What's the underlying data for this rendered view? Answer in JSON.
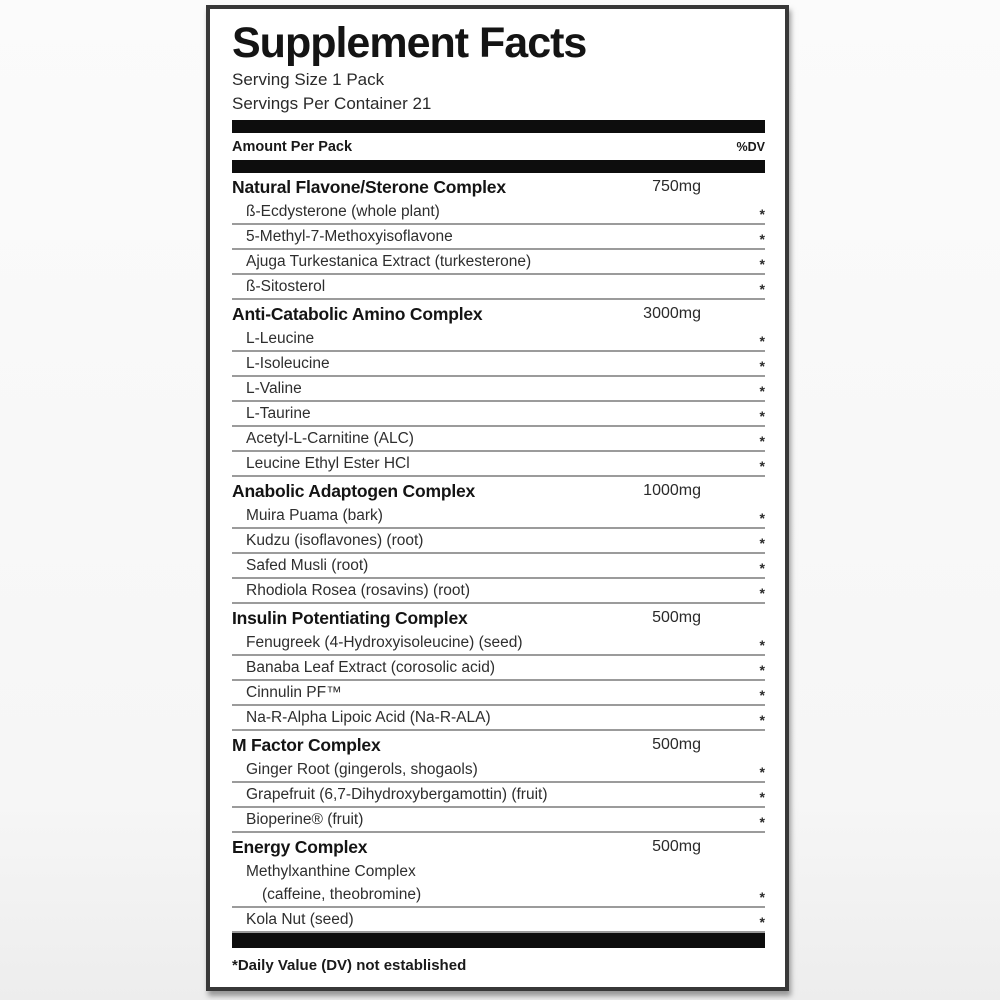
{
  "label": {
    "title": "Supplement Facts",
    "serving_size": "Serving Size 1 Pack",
    "servings_per_container": "Servings Per Container 21",
    "columns": {
      "left": "Amount Per Pack",
      "right": "%DV"
    },
    "sections": [
      {
        "name": "Natural Flavone/Sterone Complex",
        "amount": "750mg",
        "items": [
          {
            "lines": [
              "ß-Ecdysterone (whole plant)"
            ],
            "dv": "*"
          },
          {
            "lines": [
              "5-Methyl-7-Methoxyisoflavone"
            ],
            "dv": "*"
          },
          {
            "lines": [
              "Ajuga Turkestanica Extract (turkesterone)"
            ],
            "dv": "*"
          },
          {
            "lines": [
              "ß-Sitosterol"
            ],
            "dv": "*"
          }
        ]
      },
      {
        "name": "Anti-Catabolic Amino Complex",
        "amount": "3000mg",
        "items": [
          {
            "lines": [
              "L-Leucine"
            ],
            "dv": "*"
          },
          {
            "lines": [
              "L-Isoleucine"
            ],
            "dv": "*"
          },
          {
            "lines": [
              "L-Valine"
            ],
            "dv": "*"
          },
          {
            "lines": [
              "L-Taurine"
            ],
            "dv": "*"
          },
          {
            "lines": [
              "Acetyl-L-Carnitine (ALC)"
            ],
            "dv": "*"
          },
          {
            "lines": [
              "Leucine Ethyl Ester HCl"
            ],
            "dv": "*"
          }
        ]
      },
      {
        "name": "Anabolic Adaptogen Complex",
        "amount": "1000mg",
        "items": [
          {
            "lines": [
              "Muira Puama (bark)"
            ],
            "dv": "*"
          },
          {
            "lines": [
              "Kudzu (isoflavones) (root)"
            ],
            "dv": "*"
          },
          {
            "lines": [
              "Safed Musli (root)"
            ],
            "dv": "*"
          },
          {
            "lines": [
              "Rhodiola Rosea (rosavins) (root)"
            ],
            "dv": "*"
          }
        ]
      },
      {
        "name": "Insulin Potentiating Complex",
        "amount": "500mg",
        "items": [
          {
            "lines": [
              "Fenugreek (4-Hydroxyisoleucine) (seed)"
            ],
            "dv": "*"
          },
          {
            "lines": [
              "Banaba Leaf Extract (corosolic acid)"
            ],
            "dv": "*"
          },
          {
            "lines": [
              "Cinnulin PF™"
            ],
            "dv": "*"
          },
          {
            "lines": [
              "Na-R-Alpha Lipoic Acid (Na-R-ALA)"
            ],
            "dv": "*"
          }
        ]
      },
      {
        "name": "M Factor Complex",
        "amount": "500mg",
        "items": [
          {
            "lines": [
              "Ginger Root (gingerols, shogaols)"
            ],
            "dv": "*"
          },
          {
            "lines": [
              "Grapefruit (6,7-Dihydroxybergamottin) (fruit)"
            ],
            "dv": "*"
          },
          {
            "lines": [
              "Bioperine® (fruit)"
            ],
            "dv": "*"
          }
        ]
      },
      {
        "name": "Energy Complex",
        "amount": "500mg",
        "items": [
          {
            "lines": [
              "Methylxanthine Complex",
              "(caffeine, theobromine)"
            ],
            "dv": "*"
          },
          {
            "lines": [
              "Kola Nut (seed)"
            ],
            "dv": "*"
          }
        ]
      }
    ],
    "footnote": "*Daily Value (DV) not established"
  },
  "colors": {
    "panel_border": "#383838",
    "bar": "#0d0d0d",
    "hairline": "#9b9b9b",
    "text": "#1c1c1c",
    "background": "#f6f6f6"
  }
}
